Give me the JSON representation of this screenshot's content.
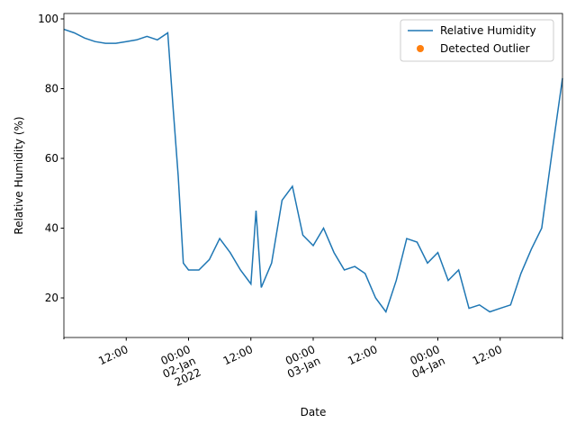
{
  "chart_data": {
    "type": "line",
    "xlabel": "Date",
    "ylabel": "Relative Humidity (%)",
    "x": [
      "2022-01-01 00:00",
      "2022-01-01 02:00",
      "2022-01-01 04:00",
      "2022-01-01 06:00",
      "2022-01-01 08:00",
      "2022-01-01 10:00",
      "2022-01-01 12:00",
      "2022-01-01 14:00",
      "2022-01-01 16:00",
      "2022-01-01 18:00",
      "2022-01-01 20:00",
      "2022-01-01 21:00",
      "2022-01-01 22:00",
      "2022-01-01 23:00",
      "2022-01-02 00:00",
      "2022-01-02 02:00",
      "2022-01-02 04:00",
      "2022-01-02 06:00",
      "2022-01-02 08:00",
      "2022-01-02 10:00",
      "2022-01-02 12:00",
      "2022-01-02 13:00",
      "2022-01-02 14:00",
      "2022-01-02 16:00",
      "2022-01-02 18:00",
      "2022-01-02 20:00",
      "2022-01-02 22:00",
      "2022-01-03 00:00",
      "2022-01-03 02:00",
      "2022-01-03 04:00",
      "2022-01-03 06:00",
      "2022-01-03 08:00",
      "2022-01-03 10:00",
      "2022-01-03 12:00",
      "2022-01-03 14:00",
      "2022-01-03 16:00",
      "2022-01-03 18:00",
      "2022-01-03 20:00",
      "2022-01-03 22:00",
      "2022-01-04 00:00",
      "2022-01-04 02:00",
      "2022-01-04 04:00",
      "2022-01-04 06:00",
      "2022-01-04 08:00",
      "2022-01-04 10:00",
      "2022-01-04 12:00",
      "2022-01-04 14:00",
      "2022-01-04 16:00",
      "2022-01-04 18:00",
      "2022-01-04 20:00",
      "2022-01-04 22:00",
      "2022-01-05 00:00"
    ],
    "series": [
      {
        "name": "Relative Humidity",
        "color": "#1f77b4",
        "values": [
          97,
          96,
          94.5,
          93.5,
          93,
          93,
          93.5,
          94,
          95,
          94,
          96,
          75,
          55,
          30,
          28,
          28,
          31,
          37,
          33,
          28,
          24,
          45,
          23,
          30,
          48,
          52,
          38,
          35,
          40,
          33,
          28,
          29,
          27,
          20,
          16,
          25,
          37,
          36,
          30,
          33,
          25,
          28,
          17,
          18,
          16,
          17,
          18,
          27,
          34,
          40,
          62,
          83
        ]
      },
      {
        "name": "Detected Outlier",
        "color": "#ff7f0e",
        "type": "scatter",
        "values": [
          null,
          null,
          null,
          null,
          null,
          null,
          null,
          null,
          null,
          null,
          null,
          null,
          null,
          null,
          null,
          null,
          null,
          null,
          null,
          null,
          null,
          null,
          null,
          null,
          null,
          null,
          null,
          null,
          null,
          null,
          null,
          null,
          null,
          null,
          null,
          null,
          null,
          null,
          null,
          null,
          null,
          null,
          null,
          null,
          null,
          null,
          null,
          null,
          null,
          null,
          null,
          null
        ]
      }
    ],
    "xlim": [
      "2022-01-01 00:00",
      "2022-01-05 00:00"
    ],
    "xticks": [
      {
        "value": "2022-01-01 12:00",
        "label": "12:00"
      },
      {
        "value": "2022-01-02 00:00",
        "label": "00:00\n02-Jan\n2022"
      },
      {
        "value": "2022-01-02 12:00",
        "label": "12:00"
      },
      {
        "value": "2022-01-03 00:00",
        "label": "00:00\n03-Jan"
      },
      {
        "value": "2022-01-03 12:00",
        "label": "12:00"
      },
      {
        "value": "2022-01-04 00:00",
        "label": "00:00\n04-Jan"
      },
      {
        "value": "2022-01-04 12:00",
        "label": "12:00"
      }
    ],
    "ylim": [
      8.65,
      101.55
    ],
    "yticks": [
      20,
      40,
      60,
      80,
      100
    ],
    "legend": "upper right"
  }
}
